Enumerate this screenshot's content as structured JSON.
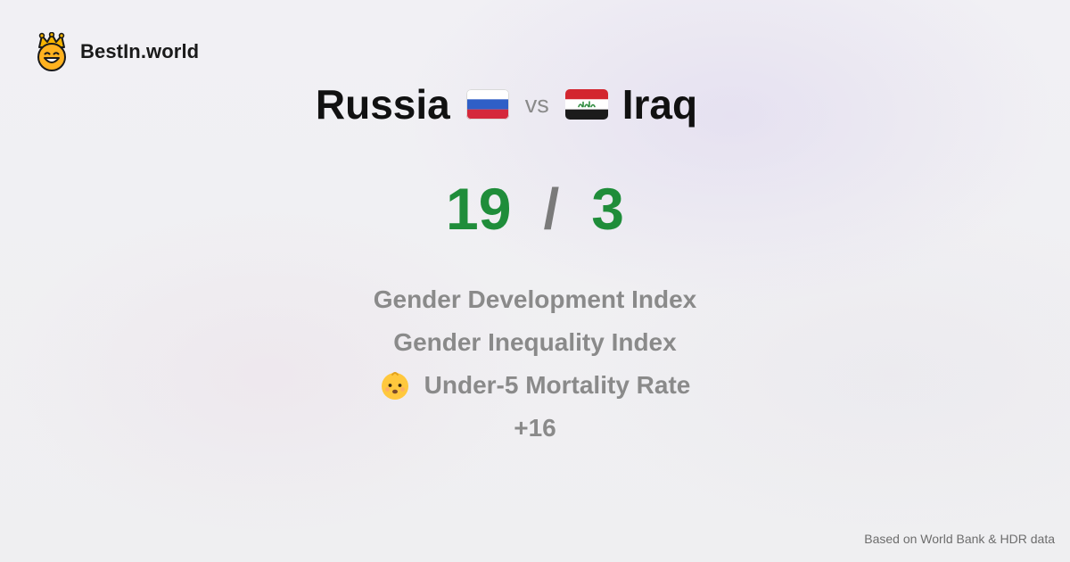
{
  "brand": {
    "name": "BestIn.world",
    "logo_icon": "crowned-smiley-icon"
  },
  "comparison": {
    "left_country": "Russia",
    "left_flag": "russia-flag-icon",
    "vs_label": "vs",
    "right_country": "Iraq",
    "right_flag": "iraq-flag-icon"
  },
  "scores": {
    "left": "19",
    "separator": "/",
    "right": "3",
    "color": "#1f8d3a"
  },
  "metrics": [
    {
      "label": "Gender Development Index",
      "icon": ""
    },
    {
      "label": "Gender Inequality Index",
      "icon": ""
    },
    {
      "label": "Under-5 Mortality Rate",
      "icon": "baby-face-icon"
    }
  ],
  "more_label": "+16",
  "footer": {
    "source": "Based on World Bank & HDR data"
  }
}
